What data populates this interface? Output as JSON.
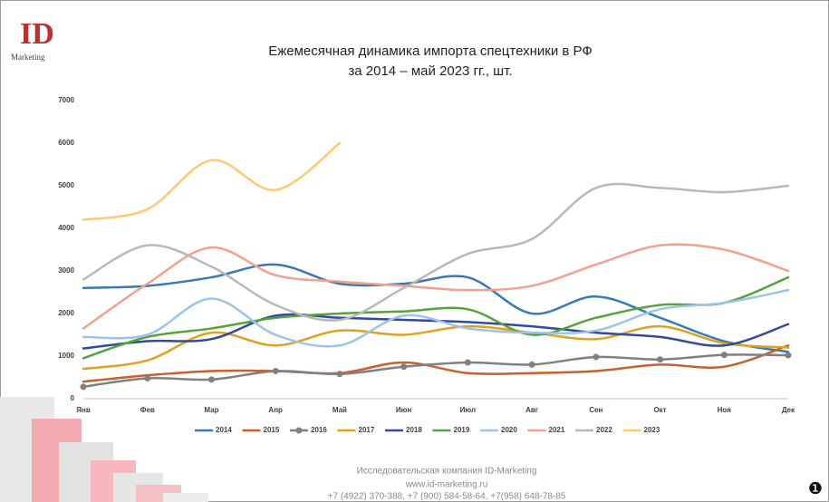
{
  "chart_data": {
    "type": "line",
    "title": "Ежемесячная динамика импорта спецтехники в РФ",
    "subtitle": "за 2014 – май 2023 гг., шт.",
    "logo": {
      "mark": "ID",
      "text": "Marketing"
    },
    "footer": [
      "Исследовательская компания ID-Marketing",
      "www.id-marketing.ru",
      "+7 (4922) 370-388, +7 (900) 584-58-64, +7(958) 648-78-85"
    ],
    "page_number": "❶",
    "categories": [
      "Янв",
      "Фев",
      "Мар",
      "Апр",
      "Май",
      "Июн",
      "Июл",
      "Авг",
      "Сен",
      "Окт",
      "Ноя",
      "Дек"
    ],
    "ylim": [
      0,
      7000
    ],
    "yticks": [
      0,
      1000,
      2000,
      3000,
      4000,
      5000,
      6000,
      7000
    ],
    "grid": false,
    "legend": "bottom",
    "smooth": true,
    "series": [
      {
        "name": "2014",
        "color": "#3a78b5",
        "values": [
          2600,
          2650,
          2850,
          3150,
          2700,
          2700,
          2850,
          2000,
          2400,
          1900,
          1350,
          1100
        ]
      },
      {
        "name": "2015",
        "color": "#c8612a",
        "values": [
          400,
          550,
          650,
          650,
          600,
          850,
          600,
          600,
          650,
          800,
          750,
          1250
        ]
      },
      {
        "name": "2016",
        "color": "#808080",
        "marker": "circle",
        "values": [
          280,
          480,
          450,
          650,
          580,
          750,
          850,
          800,
          980,
          920,
          1030,
          1020
        ]
      },
      {
        "name": "2017",
        "color": "#e0a21c",
        "values": [
          700,
          900,
          1550,
          1250,
          1600,
          1500,
          1700,
          1550,
          1400,
          1700,
          1300,
          1200
        ]
      },
      {
        "name": "2018",
        "color": "#2f4aa0",
        "values": [
          1180,
          1350,
          1400,
          1950,
          1900,
          1850,
          1800,
          1700,
          1550,
          1450,
          1250,
          1750
        ]
      },
      {
        "name": "2019",
        "color": "#56a33a",
        "values": [
          950,
          1450,
          1650,
          1900,
          2000,
          2050,
          2100,
          1500,
          1900,
          2200,
          2250,
          2850
        ]
      },
      {
        "name": "2020",
        "color": "#9cc4e8",
        "values": [
          1450,
          1500,
          2350,
          1500,
          1250,
          1950,
          1650,
          1550,
          1600,
          2100,
          2250,
          2550
        ]
      },
      {
        "name": "2021",
        "color": "#f3a08c",
        "values": [
          1650,
          2700,
          3550,
          2900,
          2750,
          2650,
          2550,
          2650,
          3150,
          3600,
          3500,
          3000
        ]
      },
      {
        "name": "2022",
        "color": "#b8b8b8",
        "values": [
          2800,
          3600,
          3100,
          2200,
          1850,
          2600,
          3400,
          3750,
          4950,
          4950,
          4850,
          5000
        ]
      },
      {
        "name": "2023",
        "color": "#ffc96e",
        "values": [
          4200,
          4450,
          5600,
          4900,
          6000,
          null,
          null,
          null,
          null,
          null,
          null,
          null
        ]
      }
    ]
  }
}
